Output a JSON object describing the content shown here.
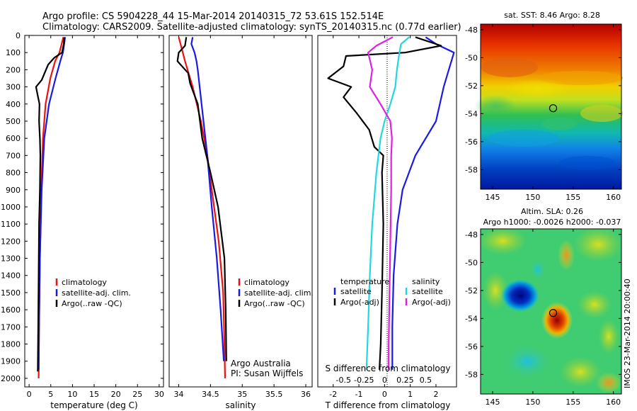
{
  "title": {
    "line1": "Argo profile: CS 5904228_44 15-Mar-2014 20140315_72 53.61S 152.514E",
    "line2": "Climatology: CARS2009. Satellite-adjusted climatology: synTS_20140315.nc (0.77d earlier)"
  },
  "colors": {
    "climatology": "#ee1111",
    "satellite": "#1a1ae6",
    "argo": "#000000",
    "cyan": "#22d8e0",
    "magenta": "#e020e0"
  },
  "chart_data": [
    {
      "type": "line",
      "panel": "temperature",
      "xlabel": "temperature (deg C)",
      "ylabel": "",
      "xlim": [
        -1,
        31
      ],
      "ylim": [
        2050,
        0
      ],
      "xticks": [
        0,
        5,
        10,
        15,
        20,
        25,
        30
      ],
      "yticks": [
        0,
        100,
        200,
        300,
        400,
        500,
        600,
        700,
        800,
        900,
        1000,
        1100,
        1200,
        1300,
        1400,
        1500,
        1600,
        1700,
        1800,
        1900,
        2000
      ],
      "legend": [
        "climatology",
        "satellite-adj. clim.",
        "Argo(..raw -QC)"
      ],
      "series": [
        {
          "name": "climatology",
          "color": "#ee1111",
          "depth": [
            10,
            50,
            100,
            150,
            250,
            400,
            600,
            900,
            1300,
            1700,
            2000
          ],
          "values": [
            7.9,
            7.5,
            7.0,
            6.0,
            4.9,
            3.8,
            3.2,
            2.8,
            2.5,
            2.3,
            2.2
          ]
        },
        {
          "name": "satellite-adj. clim.",
          "color": "#1a1ae6",
          "depth": [
            10,
            50,
            100,
            150,
            250,
            400,
            600,
            900,
            1300,
            1700,
            1950
          ],
          "values": [
            8.3,
            8.1,
            7.8,
            7.2,
            6.1,
            4.6,
            3.5,
            2.9,
            2.5,
            2.3,
            2.2
          ]
        },
        {
          "name": "Argo(..raw -QC)",
          "color": "#000000",
          "depth": [
            10,
            50,
            100,
            130,
            170,
            200,
            260,
            300,
            340,
            400,
            500,
            600,
            700,
            900,
            1100,
            1400,
            1700,
            1960
          ],
          "values": [
            8.1,
            8.0,
            7.6,
            5.8,
            4.4,
            3.9,
            2.9,
            1.6,
            1.9,
            2.4,
            2.3,
            2.5,
            2.6,
            2.5,
            2.3,
            2.2,
            2.1,
            2.0
          ]
        }
      ]
    },
    {
      "type": "line",
      "panel": "salinity",
      "xlabel": "salinity",
      "xlim": [
        33.85,
        36.1
      ],
      "ylim": [
        2050,
        0
      ],
      "xticks": [
        34,
        34.5,
        35,
        35.5,
        36
      ],
      "legend": [
        "climatology",
        "satellite-adj. clim.",
        "Argo(..raw -QC)"
      ],
      "annotation": [
        "Argo Australia",
        "PI: Susan Wijffels"
      ],
      "series": [
        {
          "name": "climatology",
          "color": "#ee1111",
          "depth": [
            10,
            80,
            150,
            300,
            500,
            700,
            900,
            1200,
            1500,
            1800,
            2000
          ],
          "values": [
            34.0,
            34.05,
            34.1,
            34.22,
            34.35,
            34.45,
            34.52,
            34.63,
            34.7,
            34.72,
            34.73
          ]
        },
        {
          "name": "satellite-adj. clim.",
          "color": "#1a1ae6",
          "depth": [
            10,
            50,
            100,
            150,
            200,
            300,
            500,
            700,
            1000,
            1300,
            1600,
            1900
          ],
          "values": [
            34.22,
            34.2,
            34.25,
            34.28,
            34.3,
            34.33,
            34.39,
            34.45,
            34.52,
            34.6,
            34.66,
            34.71
          ]
        },
        {
          "name": "Argo(..raw -QC)",
          "color": "#000000",
          "depth": [
            10,
            60,
            100,
            150,
            220,
            280,
            400,
            600,
            800,
            1000,
            1300,
            1600,
            1900
          ],
          "values": [
            34.12,
            34.1,
            34.0,
            33.98,
            34.15,
            34.18,
            34.3,
            34.37,
            34.5,
            34.62,
            34.72,
            34.74,
            34.75
          ]
        }
      ]
    },
    {
      "type": "line",
      "panel": "difference",
      "xlabel": "T difference from climatology",
      "xlabel_top": "S difference from climatology",
      "xlim": [
        -2.6,
        2.8
      ],
      "ylim": [
        2050,
        0
      ],
      "xticks": [
        -2,
        -1,
        0,
        1,
        2
      ],
      "xticks_s": [
        -0.5,
        -0.25,
        0,
        0.25,
        0.5
      ],
      "xticks_s_labels": [
        "-0.5",
        "-0.25",
        "0",
        "0.25",
        "0.5"
      ],
      "legend_headers": [
        "temperature",
        "salinity"
      ],
      "legend_left": [
        "satellite",
        "Argo(-adj)"
      ],
      "legend_right": [
        "satellite",
        "Argo(-adj)"
      ],
      "series": [
        {
          "name": "satellite",
          "quantity": "temperature",
          "color": "#1a1ae6",
          "depth": [
            10,
            50,
            100,
            200,
            300,
            500,
            700,
            900,
            1100,
            1400,
            1700,
            1950
          ],
          "values": [
            1.6,
            2.0,
            2.7,
            2.5,
            2.3,
            2.0,
            1.2,
            0.7,
            0.5,
            0.35,
            0.3,
            0.3
          ]
        },
        {
          "name": "Argo(-adj)",
          "quantity": "temperature",
          "color": "#000000",
          "depth": [
            10,
            60,
            100,
            120,
            180,
            250,
            300,
            360,
            450,
            550,
            650,
            700,
            800,
            1100,
            1500,
            1800,
            1950
          ],
          "values": [
            1.2,
            2.2,
            0.8,
            -1.5,
            -1.6,
            -2.2,
            -1.3,
            -1.6,
            -1.1,
            -0.6,
            -0.4,
            -0.05,
            -0.1,
            -0.05,
            -0.1,
            -0.15,
            -0.2
          ]
        },
        {
          "name": "satellite",
          "quantity": "salinity",
          "color": "#22d8e0",
          "depth": [
            10,
            50,
            100,
            200,
            300,
            400,
            500,
            600,
            800,
            1100,
            1400,
            1700,
            1950
          ],
          "values": [
            0.3,
            0.2,
            0.18,
            0.15,
            0.13,
            0.07,
            0.0,
            -0.05,
            -0.1,
            -0.15,
            -0.18,
            -0.2,
            -0.22
          ]
        },
        {
          "name": "Argo(-adj)",
          "quantity": "salinity",
          "color": "#e020e0",
          "depth": [
            10,
            60,
            100,
            200,
            300,
            400,
            500,
            600,
            700,
            900,
            1200,
            1500,
            1800,
            1950
          ],
          "values": [
            0.1,
            -0.1,
            -0.2,
            -0.15,
            -0.18,
            -0.05,
            0.07,
            0.09,
            0.08,
            0.08,
            0.07,
            0.06,
            0.05,
            0.05
          ]
        }
      ]
    },
    {
      "type": "heatmap",
      "panel": "sst-map",
      "title": "sat. SST: 8.46 Argo: 8.28",
      "xticks": [
        145,
        150,
        155,
        160
      ],
      "yticks": [
        -48,
        -50,
        -52,
        -54,
        -56,
        -58
      ],
      "xlim": [
        143.5,
        161
      ],
      "ylim": [
        -59.4,
        -47.6
      ],
      "profile_location": [
        152.514,
        -53.61
      ]
    },
    {
      "type": "heatmap",
      "panel": "sla-map",
      "title": "Altim. SLA: 0.26",
      "subtitle": "Argo h1000: -0.0026 h2000: -0.037",
      "xticks": [
        145,
        150,
        155,
        160
      ],
      "yticks": [
        -48,
        -50,
        -52,
        -54,
        -56,
        -58
      ],
      "xlim": [
        143.5,
        161
      ],
      "ylim": [
        -59.4,
        -47.6
      ],
      "profile_location": [
        152.514,
        -53.61
      ],
      "side_label": "IMOS 23-Mar-2014 20:00:40"
    }
  ]
}
